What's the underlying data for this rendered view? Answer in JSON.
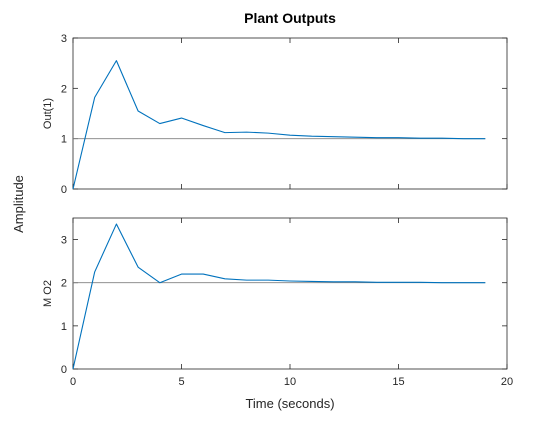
{
  "chart_data": {
    "type": "line",
    "title": "Plant Outputs",
    "xlabel": "Time (seconds)",
    "ylabel": "Amplitude",
    "xlim": [
      0,
      20
    ],
    "xticks": [
      "0",
      "5",
      "10",
      "15",
      "20"
    ],
    "colors": {
      "series": "#0072bd",
      "reference": "#808080",
      "axes": "#262626"
    },
    "grid": false,
    "subplots": [
      {
        "ylabel": "Out(1)",
        "ylim": [
          0,
          3
        ],
        "yticks": [
          "0",
          "1",
          "2",
          "3"
        ],
        "reference": 1,
        "series": [
          {
            "x": [
              0,
              1,
              2,
              3,
              4,
              5,
              6,
              7,
              8,
              9,
              10,
              11,
              12,
              13,
              14,
              15,
              16,
              17,
              18,
              19
            ],
            "values": [
              0,
              1.82,
              2.55,
              1.55,
              1.3,
              1.41,
              1.26,
              1.12,
              1.13,
              1.11,
              1.07,
              1.05,
              1.04,
              1.03,
              1.02,
              1.02,
              1.01,
              1.01,
              1.0,
              1.0
            ]
          }
        ]
      },
      {
        "ylabel": "M O2",
        "ylim": [
          0,
          3.5
        ],
        "yticks": [
          "0",
          "1",
          "2",
          "3"
        ],
        "reference": 2,
        "series": [
          {
            "x": [
              0,
              1,
              2,
              3,
              4,
              5,
              6,
              7,
              8,
              9,
              10,
              11,
              12,
              13,
              14,
              15,
              16,
              17,
              18,
              19
            ],
            "values": [
              0,
              2.25,
              3.36,
              2.36,
              2.0,
              2.2,
              2.2,
              2.09,
              2.06,
              2.06,
              2.04,
              2.03,
              2.02,
              2.02,
              2.01,
              2.01,
              2.01,
              2.0,
              2.0,
              2.0
            ]
          }
        ]
      }
    ]
  }
}
